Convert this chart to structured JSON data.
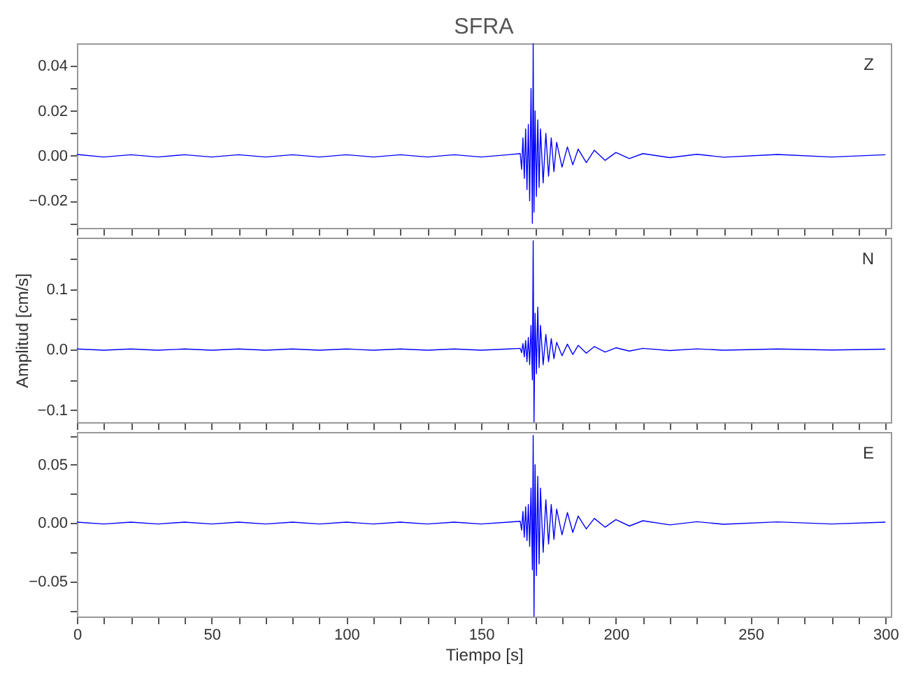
{
  "chart_data": [
    {
      "type": "line",
      "title": "SFRA",
      "annotations": [
        "Z"
      ],
      "xlim": [
        0,
        302
      ],
      "ylim": [
        -0.032,
        0.05
      ],
      "tick_labels": "y",
      "xticks": [
        0,
        {
          "value": 10,
          "label": null
        },
        {
          "value": 20,
          "label": null
        },
        {
          "value": 30,
          "label": null
        },
        {
          "value": 40,
          "label": null
        },
        50,
        {
          "value": 60,
          "label": null
        },
        {
          "value": 70,
          "label": null
        },
        {
          "value": 80,
          "label": null
        },
        {
          "value": 90,
          "label": null
        },
        100,
        {
          "value": 110,
          "label": null
        },
        {
          "value": 120,
          "label": null
        },
        {
          "value": 130,
          "label": null
        },
        {
          "value": 140,
          "label": null
        },
        150,
        {
          "value": 160,
          "label": null
        },
        {
          "value": 170,
          "label": null
        },
        {
          "value": 180,
          "label": null
        },
        {
          "value": 190,
          "label": null
        },
        200,
        {
          "value": 210,
          "label": null
        },
        {
          "value": 220,
          "label": null
        },
        {
          "value": 230,
          "label": null
        },
        {
          "value": 240,
          "label": null
        },
        250,
        {
          "value": 260,
          "label": null
        },
        {
          "value": 270,
          "label": null
        },
        {
          "value": 280,
          "label": null
        },
        {
          "value": 290,
          "label": null
        },
        300
      ],
      "yticks": [
        {
          "value": -0.03,
          "label": null
        },
        {
          "value": -0.02,
          "label": "−0.02"
        },
        {
          "value": -0.01,
          "label": null
        },
        {
          "value": 0,
          "label": "0.00"
        },
        {
          "value": 0.01,
          "label": null
        },
        {
          "value": 0.02,
          "label": "0.02"
        },
        {
          "value": 0.03,
          "label": null
        },
        {
          "value": 0.04,
          "label": "0.04"
        }
      ],
      "series": [
        {
          "color": "#0000ff",
          "x": [
            0,
            10,
            20,
            30,
            40,
            50,
            60,
            70,
            80,
            90,
            100,
            110,
            120,
            130,
            140,
            150,
            160,
            164.5,
            165,
            165.5,
            166,
            166.5,
            167,
            167.5,
            168,
            168.5,
            169,
            169.3,
            169.6,
            170,
            170.5,
            171,
            171.5,
            172,
            173,
            174,
            175,
            176,
            177,
            178,
            180,
            182,
            184,
            186,
            189,
            192,
            196,
            200,
            205,
            210,
            220,
            230,
            240,
            260,
            280,
            300
          ],
          "values": [
            0.0006,
            -0.0005,
            0.0005,
            -0.0005,
            0.0005,
            -0.0005,
            0.0005,
            -0.0005,
            0.0005,
            -0.0005,
            0.0005,
            -0.0005,
            0.0005,
            -0.0005,
            0.0005,
            -0.0005,
            0.0005,
            0.001,
            -0.006,
            0.008,
            -0.01,
            0.012,
            -0.015,
            0.014,
            -0.02,
            0.03,
            -0.03,
            0.05,
            -0.025,
            0.02,
            -0.018,
            0.016,
            -0.014,
            0.012,
            -0.012,
            0.01,
            -0.009,
            0.008,
            -0.007,
            0.006,
            -0.005,
            0.004,
            -0.004,
            0.003,
            -0.003,
            0.0025,
            -0.002,
            0.0015,
            -0.0012,
            0.001,
            -0.0008,
            0.0007,
            -0.0006,
            0.0006,
            -0.0005,
            0.0005
          ]
        }
      ]
    },
    {
      "type": "line",
      "ylabel": "Amplitud  [cm/s]",
      "annotations": [
        "N"
      ],
      "xlim": [
        0,
        302
      ],
      "ylim": [
        -0.12,
        0.185
      ],
      "tick_labels": "y",
      "xticks": [
        0,
        {
          "value": 10,
          "label": null
        },
        {
          "value": 20,
          "label": null
        },
        {
          "value": 30,
          "label": null
        },
        {
          "value": 40,
          "label": null
        },
        50,
        {
          "value": 60,
          "label": null
        },
        {
          "value": 70,
          "label": null
        },
        {
          "value": 80,
          "label": null
        },
        {
          "value": 90,
          "label": null
        },
        100,
        {
          "value": 110,
          "label": null
        },
        {
          "value": 120,
          "label": null
        },
        {
          "value": 130,
          "label": null
        },
        {
          "value": 140,
          "label": null
        },
        150,
        {
          "value": 160,
          "label": null
        },
        {
          "value": 170,
          "label": null
        },
        {
          "value": 180,
          "label": null
        },
        {
          "value": 190,
          "label": null
        },
        200,
        {
          "value": 210,
          "label": null
        },
        {
          "value": 220,
          "label": null
        },
        {
          "value": 230,
          "label": null
        },
        {
          "value": 240,
          "label": null
        },
        250,
        {
          "value": 260,
          "label": null
        },
        {
          "value": 270,
          "label": null
        },
        {
          "value": 280,
          "label": null
        },
        {
          "value": 290,
          "label": null
        },
        300
      ],
      "yticks": [
        {
          "value": -0.1,
          "label": "−0.1"
        },
        {
          "value": -0.05,
          "label": null
        },
        {
          "value": 0,
          "label": "0.0"
        },
        {
          "value": 0.05,
          "label": null
        },
        {
          "value": 0.1,
          "label": "0.1"
        },
        {
          "value": 0.15,
          "label": null
        }
      ],
      "series": [
        {
          "color": "#0000ff",
          "x": [
            0,
            10,
            20,
            30,
            40,
            50,
            60,
            70,
            80,
            90,
            100,
            110,
            120,
            130,
            140,
            150,
            160,
            164.5,
            165,
            165.5,
            166,
            166.5,
            167,
            167.5,
            168,
            168.5,
            169,
            169.3,
            169.6,
            170,
            170.5,
            171,
            171.5,
            172,
            173,
            174,
            175,
            176,
            177,
            178,
            180,
            182,
            184,
            186,
            189,
            192,
            196,
            200,
            205,
            210,
            220,
            230,
            240,
            260,
            280,
            300
          ],
          "values": [
            0.001,
            -0.001,
            0.001,
            -0.001,
            0.001,
            -0.001,
            0.001,
            -0.001,
            0.001,
            -0.001,
            0.001,
            -0.001,
            0.001,
            -0.001,
            0.001,
            -0.001,
            0.001,
            0.002,
            -0.005,
            0.01,
            -0.012,
            0.015,
            -0.02,
            0.02,
            -0.025,
            0.04,
            -0.05,
            0.18,
            -0.12,
            0.06,
            -0.04,
            0.07,
            -0.03,
            0.04,
            -0.025,
            0.025,
            -0.02,
            0.018,
            -0.015,
            0.012,
            -0.01,
            0.009,
            -0.008,
            0.007,
            -0.006,
            0.005,
            -0.004,
            0.003,
            -0.0025,
            0.002,
            -0.0015,
            0.0012,
            -0.001,
            0.001,
            -0.0008,
            0.0008
          ]
        }
      ]
    },
    {
      "type": "line",
      "xlabel": "Tiempo  [s]",
      "annotations": [
        "E"
      ],
      "xlim": [
        0,
        302
      ],
      "ylim": [
        -0.08,
        0.078
      ],
      "xticks": [
        0,
        {
          "value": 10,
          "label": null
        },
        {
          "value": 20,
          "label": null
        },
        {
          "value": 30,
          "label": null
        },
        {
          "value": 40,
          "label": null
        },
        50,
        {
          "value": 60,
          "label": null
        },
        {
          "value": 70,
          "label": null
        },
        {
          "value": 80,
          "label": null
        },
        {
          "value": 90,
          "label": null
        },
        100,
        {
          "value": 110,
          "label": null
        },
        {
          "value": 120,
          "label": null
        },
        {
          "value": 130,
          "label": null
        },
        {
          "value": 140,
          "label": null
        },
        150,
        {
          "value": 160,
          "label": null
        },
        {
          "value": 170,
          "label": null
        },
        {
          "value": 180,
          "label": null
        },
        {
          "value": 190,
          "label": null
        },
        200,
        {
          "value": 210,
          "label": null
        },
        {
          "value": 220,
          "label": null
        },
        {
          "value": 230,
          "label": null
        },
        {
          "value": 240,
          "label": null
        },
        250,
        {
          "value": 260,
          "label": null
        },
        {
          "value": 270,
          "label": null
        },
        {
          "value": 280,
          "label": null
        },
        {
          "value": 290,
          "label": null
        },
        300
      ],
      "yticks": [
        {
          "value": -0.075,
          "label": null
        },
        {
          "value": -0.05,
          "label": "−0.05"
        },
        {
          "value": -0.025,
          "label": null
        },
        {
          "value": 0,
          "label": "0.00"
        },
        {
          "value": 0.025,
          "label": null
        },
        {
          "value": 0.05,
          "label": "0.05"
        },
        {
          "value": 0.075,
          "label": null
        }
      ],
      "series": [
        {
          "color": "#0000ff",
          "x": [
            0,
            10,
            20,
            30,
            40,
            50,
            60,
            70,
            80,
            90,
            100,
            110,
            120,
            130,
            140,
            150,
            160,
            164.5,
            165,
            165.5,
            166,
            166.5,
            167,
            167.5,
            168,
            168.5,
            169,
            169.3,
            169.6,
            170,
            170.5,
            171,
            171.5,
            172,
            173,
            174,
            175,
            176,
            177,
            178,
            180,
            182,
            184,
            186,
            189,
            192,
            196,
            200,
            205,
            210,
            220,
            230,
            240,
            260,
            280,
            300
          ],
          "values": [
            0.0008,
            -0.0008,
            0.0008,
            -0.0008,
            0.0008,
            -0.0008,
            0.0008,
            -0.0008,
            0.0008,
            -0.0008,
            0.0008,
            -0.0008,
            0.0008,
            -0.0008,
            0.0008,
            -0.0008,
            0.0008,
            0.0015,
            -0.006,
            0.01,
            -0.012,
            0.014,
            -0.015,
            0.016,
            -0.02,
            0.03,
            -0.04,
            0.075,
            -0.08,
            0.05,
            -0.045,
            0.04,
            -0.035,
            0.03,
            -0.025,
            0.02,
            -0.018,
            0.016,
            -0.014,
            0.012,
            -0.01,
            0.009,
            -0.008,
            0.006,
            -0.005,
            0.004,
            -0.0035,
            0.003,
            -0.0025,
            0.002,
            -0.0015,
            0.0012,
            -0.001,
            0.001,
            -0.0008,
            0.0008
          ]
        }
      ]
    }
  ]
}
